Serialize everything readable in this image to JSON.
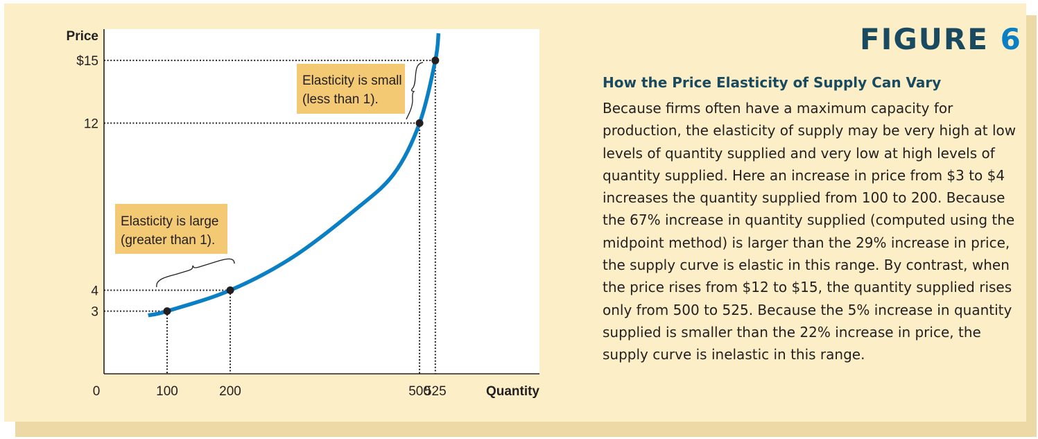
{
  "figure": {
    "label": "FIGURE",
    "number": "6"
  },
  "caption": {
    "title": "How the Price Elasticity of Supply Can Vary",
    "text": "Because firms often have a maximum capacity for production, the elasticity of supply may be very high at low levels of quantity supplied and very low at high levels of quantity supplied. Here an increase in price from $3 to $4 increases the quantity supplied from 100 to 200. Because the 67% increase in quantity supplied (computed using the midpoint method) is larger than the 29% increase in price, the supply curve is elastic in this range. By contrast, when the price rises from $12 to $15, the quantity supplied rises only from 500 to 525. Because the 5% increase in quantity supplied is smaller than the 22% increase in price, the supply curve is inelastic in this range."
  },
  "chart_data": {
    "type": "line",
    "xlabel": "Quantity",
    "ylabel": "Price",
    "origin_label": "0",
    "xlim": [
      0,
      690
    ],
    "ylim": [
      0,
      16.5
    ],
    "x_ticks": [
      {
        "value": 100,
        "label": "100"
      },
      {
        "value": 200,
        "label": "200"
      },
      {
        "value": 500,
        "label": "500"
      },
      {
        "value": 525,
        "label": "525"
      }
    ],
    "y_ticks": [
      {
        "value": 3,
        "label": "3"
      },
      {
        "value": 4,
        "label": "4"
      },
      {
        "value": 12,
        "label": "12"
      },
      {
        "value": 15,
        "label": "$15"
      }
    ],
    "series": [
      {
        "color": "#0b7fc4",
        "curve": [
          [
            70,
            2.8
          ],
          [
            100,
            3.0
          ],
          [
            200,
            4.0
          ],
          [
            300,
            5.6
          ],
          [
            400,
            7.9
          ],
          [
            460,
            9.6
          ],
          [
            500,
            12.0
          ],
          [
            525,
            15.0
          ],
          [
            530,
            16.3
          ]
        ],
        "points": [
          {
            "x": 100,
            "y": 3
          },
          {
            "x": 200,
            "y": 4
          },
          {
            "x": 500,
            "y": 12
          },
          {
            "x": 525,
            "y": 15
          }
        ]
      }
    ],
    "annotations": [
      {
        "lines": [
          "Elasticity is small",
          "(less than 1)."
        ],
        "fill": "#f3c974"
      },
      {
        "lines": [
          "Elasticity is large",
          "(greater than 1)."
        ],
        "fill": "#f3c974"
      }
    ]
  }
}
